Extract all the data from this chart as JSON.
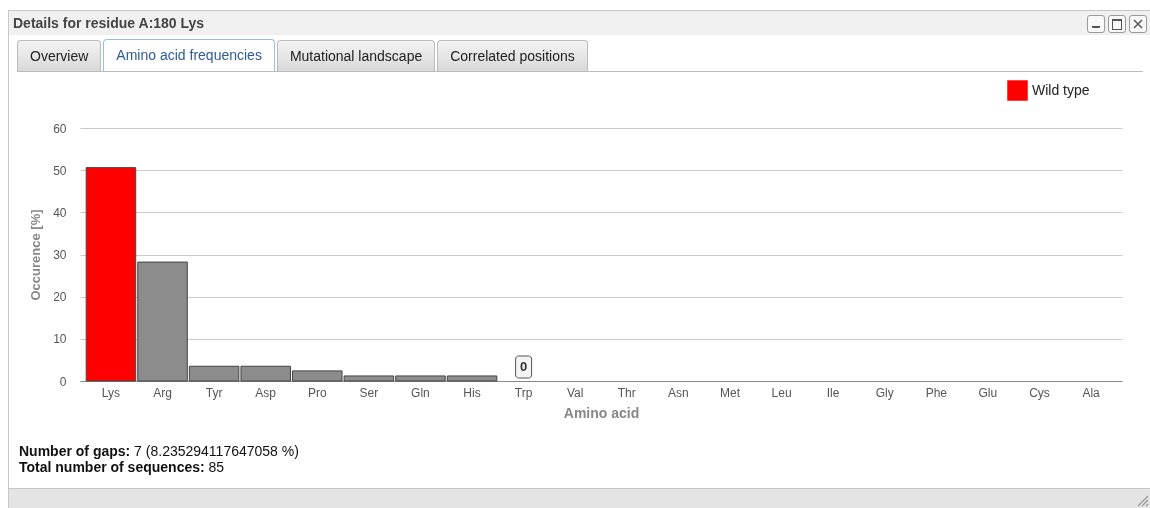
{
  "chart_data": {
    "type": "bar",
    "title": "Details for residue A:180 Lys",
    "xlabel": "Amino acid",
    "ylabel": "Occurence [%]",
    "categories": [
      "Lys",
      "Arg",
      "Tyr",
      "Asp",
      "Pro",
      "Ser",
      "Gln",
      "His",
      "Trp",
      "Val",
      "Thr",
      "Asn",
      "Met",
      "Leu",
      "Ile",
      "Gly",
      "Phe",
      "Glu",
      "Cys",
      "Ala"
    ],
    "series": [
      {
        "name": "Wild type",
        "color": "#ff0000",
        "values": [
          50.6,
          null,
          null,
          null,
          null,
          null,
          null,
          null,
          null,
          null,
          null,
          null,
          null,
          null,
          null,
          null,
          null,
          null,
          null,
          null
        ]
      },
      {
        "color": "#8c8c8c",
        "values": [
          null,
          28.2,
          3.5,
          3.5,
          2.4,
          1.2,
          1.2,
          1.2,
          0,
          0,
          0,
          0,
          0,
          0,
          0,
          0,
          0,
          0,
          0,
          0
        ]
      }
    ],
    "ylim": [
      0,
      60
    ],
    "yticks": [
      0,
      10,
      20,
      30,
      40,
      50,
      60
    ],
    "grid": "y",
    "legend": "top right",
    "annotations": [
      "Overview",
      "Amino acid frequencies",
      "Mutational landscape",
      "Correlated positions",
      {
        "text": "0",
        "x": "Trp",
        "y": 0
      },
      "Number of gaps: 7 (8.235294117647058 %)",
      "Total number of sequences: 85"
    ]
  }
}
